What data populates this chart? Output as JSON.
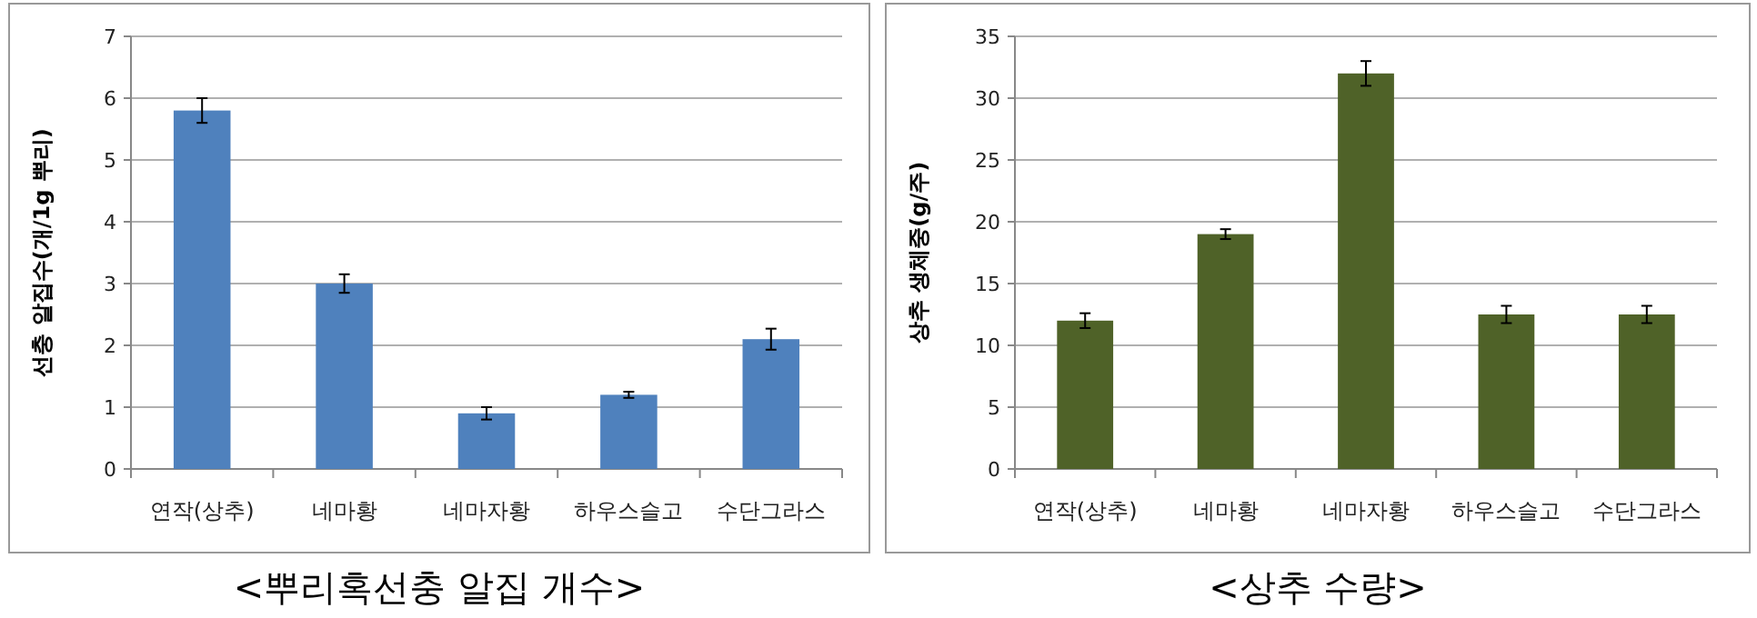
{
  "chart_data": [
    {
      "type": "bar",
      "title": "<뿌리혹선충 알집 개수>",
      "ylabel": "선충 알집수(개/1g 뿌리)",
      "categories": [
        "연작(상추)",
        "네마황",
        "네마자황",
        "하우스슬고",
        "수단그라스"
      ],
      "color": "#4f81bd",
      "values": [
        5.8,
        3.0,
        0.9,
        1.2,
        2.1
      ],
      "errors": [
        0.2,
        0.15,
        0.1,
        0.05,
        0.17
      ],
      "ylim": [
        0,
        7
      ],
      "yticks": [
        0,
        1,
        2,
        3,
        4,
        5,
        6,
        7
      ],
      "grid": "y"
    },
    {
      "type": "bar",
      "title": "<상추 수량>",
      "ylabel": "상추 생체중(g/주)",
      "categories": [
        "연작(상추)",
        "네마황",
        "네마자황",
        "하우스슬고",
        "수단그라스"
      ],
      "color": "#4f6228",
      "values": [
        12,
        19,
        32,
        12.5,
        12.5
      ],
      "errors": [
        0.6,
        0.4,
        1.0,
        0.7,
        0.7
      ],
      "ylim": [
        0,
        35
      ],
      "yticks": [
        0,
        5,
        10,
        15,
        20,
        25,
        30,
        35
      ],
      "grid": "y"
    }
  ]
}
